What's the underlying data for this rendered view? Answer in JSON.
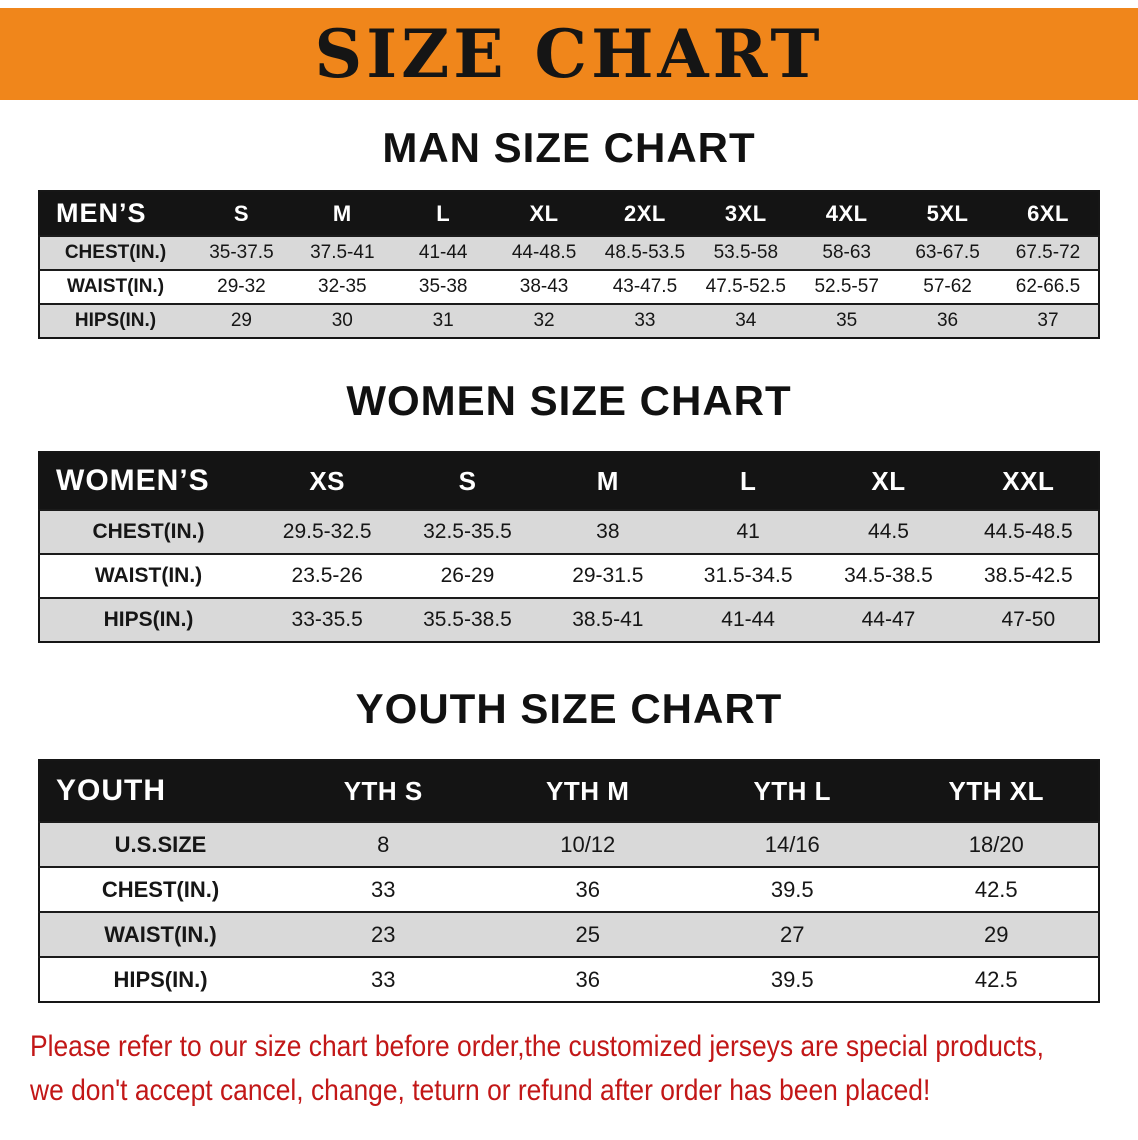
{
  "colors": {
    "banner_bg": "#f0861b",
    "header_bg": "#141414",
    "row_shade": "#d9d9d9",
    "notice_red": "#c21717"
  },
  "banner": {
    "title": "SIZE CHART"
  },
  "sections": [
    {
      "heading": "MAN SIZE CHART",
      "table": {
        "header_label": "MEN’S",
        "columns": [
          "S",
          "M",
          "L",
          "XL",
          "2XL",
          "3XL",
          "4XL",
          "5XL",
          "6XL"
        ],
        "rows": [
          {
            "label": "CHEST(IN.)",
            "values": [
              "35-37.5",
              "37.5-41",
              "41-44",
              "44-48.5",
              "48.5-53.5",
              "53.5-58",
              "58-63",
              "63-67.5",
              "67.5-72"
            ]
          },
          {
            "label": "WAIST(IN.)",
            "values": [
              "29-32",
              "32-35",
              "35-38",
              "38-43",
              "43-47.5",
              "47.5-52.5",
              "52.5-57",
              "57-62",
              "62-66.5"
            ]
          },
          {
            "label": "HIPS(IN.)",
            "values": [
              "29",
              "30",
              "31",
              "32",
              "33",
              "34",
              "35",
              "36",
              "37"
            ]
          }
        ]
      }
    },
    {
      "heading": "WOMEN SIZE CHART",
      "table": {
        "header_label": "WOMEN’S",
        "columns": [
          "XS",
          "S",
          "M",
          "L",
          "XL",
          "XXL"
        ],
        "rows": [
          {
            "label": "CHEST(IN.)",
            "values": [
              "29.5-32.5",
              "32.5-35.5",
              "38",
              "41",
              "44.5",
              "44.5-48.5"
            ]
          },
          {
            "label": "WAIST(IN.)",
            "values": [
              "23.5-26",
              "26-29",
              "29-31.5",
              "31.5-34.5",
              "34.5-38.5",
              "38.5-42.5"
            ]
          },
          {
            "label": "HIPS(IN.)",
            "values": [
              "33-35.5",
              "35.5-38.5",
              "38.5-41",
              "41-44",
              "44-47",
              "47-50"
            ]
          }
        ]
      }
    },
    {
      "heading": "YOUTH SIZE CHART",
      "table": {
        "header_label": "YOUTH",
        "columns": [
          "YTH S",
          "YTH M",
          "YTH L",
          "YTH XL"
        ],
        "rows": [
          {
            "label": "U.S.SIZE",
            "values": [
              "8",
              "10/12",
              "14/16",
              "18/20"
            ]
          },
          {
            "label": "CHEST(IN.)",
            "values": [
              "33",
              "36",
              "39.5",
              "42.5"
            ]
          },
          {
            "label": "WAIST(IN.)",
            "values": [
              "23",
              "25",
              "27",
              "29"
            ]
          },
          {
            "label": "HIPS(IN.)",
            "values": [
              "33",
              "36",
              "39.5",
              "42.5"
            ]
          }
        ]
      }
    }
  ],
  "footer": {
    "lines": [
      "Please refer to our size chart before order,the customized jerseys are special products,",
      "we don't accept cancel, change, teturn or refund after order has been placed!"
    ]
  }
}
